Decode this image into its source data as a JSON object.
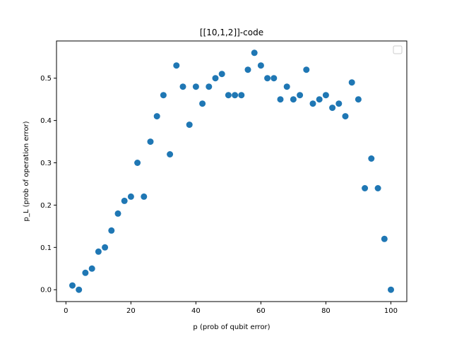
{
  "chart_data": {
    "type": "scatter",
    "title": "[[10,1,2]]-code",
    "xlabel": "p (prob of qubit error)",
    "ylabel": "p_L (prob of operation error)",
    "xlim": [
      -2.9,
      104.9
    ],
    "ylim": [
      -0.028,
      0.588
    ],
    "xticks": [
      0,
      20,
      40,
      60,
      80,
      100
    ],
    "xtick_labels": [
      "0",
      "20",
      "40",
      "60",
      "80",
      "100"
    ],
    "yticks": [
      0.0,
      0.1,
      0.2,
      0.3,
      0.4,
      0.5
    ],
    "ytick_labels": [
      "0.0",
      "0.1",
      "0.2",
      "0.3",
      "0.4",
      "0.5"
    ],
    "grid": false,
    "legend": "upper-right (empty)",
    "series": [
      {
        "color": "#1f77b4",
        "x": [
          2,
          4,
          6,
          8,
          10,
          12,
          14,
          16,
          18,
          20,
          22,
          24,
          26,
          28,
          30,
          32,
          34,
          36,
          38,
          40,
          42,
          44,
          46,
          48,
          50,
          52,
          54,
          56,
          58,
          60,
          62,
          64,
          66,
          68,
          70,
          72,
          74,
          76,
          78,
          80,
          82,
          84,
          86,
          88,
          90,
          92,
          94,
          96,
          98,
          100
        ],
        "y": [
          0.01,
          0.0,
          0.04,
          0.05,
          0.09,
          0.1,
          0.14,
          0.18,
          0.21,
          0.22,
          0.3,
          0.22,
          0.35,
          0.41,
          0.46,
          0.32,
          0.53,
          0.48,
          0.39,
          0.48,
          0.44,
          0.48,
          0.5,
          0.51,
          0.46,
          0.46,
          0.46,
          0.52,
          0.56,
          0.53,
          0.5,
          0.5,
          0.45,
          0.48,
          0.45,
          0.46,
          0.52,
          0.44,
          0.45,
          0.46,
          0.43,
          0.44,
          0.41,
          0.49,
          0.45,
          0.24,
          0.31,
          0.24,
          0.12,
          0.0
        ]
      }
    ]
  }
}
